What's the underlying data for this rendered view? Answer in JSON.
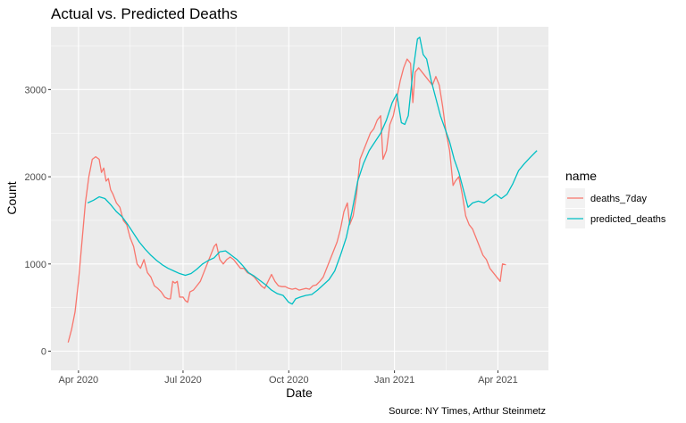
{
  "chart_data": {
    "type": "line",
    "title": "Actual vs. Predicted Deaths",
    "xlabel": "Date",
    "ylabel": "Count",
    "caption": "Source: NY Times, Arthur Steinmetz",
    "x_axis_type": "date",
    "xlim": [
      "2020-03-08",
      "2021-05-15"
    ],
    "ylim": [
      -220,
      3720
    ],
    "grid": true,
    "legend_position": "right",
    "legend_title": "name",
    "x_ticks": [
      {
        "date": "2020-04-01",
        "label": "Apr 2020"
      },
      {
        "date": "2020-07-01",
        "label": "Jul 2020"
      },
      {
        "date": "2020-10-01",
        "label": "Oct 2020"
      },
      {
        "date": "2021-01-01",
        "label": "Jan 2021"
      },
      {
        "date": "2021-04-01",
        "label": "Apr 2021"
      }
    ],
    "y_ticks": [
      {
        "value": 0,
        "label": "0"
      },
      {
        "value": 1000,
        "label": "1000"
      },
      {
        "value": 2000,
        "label": "2000"
      },
      {
        "value": 3000,
        "label": "3000"
      }
    ],
    "series": [
      {
        "name": "deaths_7day",
        "color": "#F8766D",
        "points": [
          [
            "2020-03-23",
            100
          ],
          [
            "2020-03-26",
            250
          ],
          [
            "2020-03-29",
            450
          ],
          [
            "2020-04-01",
            800
          ],
          [
            "2020-04-04",
            1250
          ],
          [
            "2020-04-07",
            1700
          ],
          [
            "2020-04-10",
            2000
          ],
          [
            "2020-04-13",
            2200
          ],
          [
            "2020-04-16",
            2230
          ],
          [
            "2020-04-19",
            2200
          ],
          [
            "2020-04-21",
            2050
          ],
          [
            "2020-04-23",
            2100
          ],
          [
            "2020-04-25",
            1950
          ],
          [
            "2020-04-27",
            1980
          ],
          [
            "2020-04-29",
            1850
          ],
          [
            "2020-05-01",
            1800
          ],
          [
            "2020-05-04",
            1700
          ],
          [
            "2020-05-07",
            1650
          ],
          [
            "2020-05-10",
            1500
          ],
          [
            "2020-05-13",
            1450
          ],
          [
            "2020-05-16",
            1300
          ],
          [
            "2020-05-19",
            1200
          ],
          [
            "2020-05-22",
            1000
          ],
          [
            "2020-05-25",
            950
          ],
          [
            "2020-05-28",
            1050
          ],
          [
            "2020-05-31",
            900
          ],
          [
            "2020-06-03",
            850
          ],
          [
            "2020-06-06",
            750
          ],
          [
            "2020-06-09",
            720
          ],
          [
            "2020-06-12",
            680
          ],
          [
            "2020-06-15",
            620
          ],
          [
            "2020-06-18",
            600
          ],
          [
            "2020-06-20",
            600
          ],
          [
            "2020-06-22",
            800
          ],
          [
            "2020-06-24",
            780
          ],
          [
            "2020-06-26",
            800
          ],
          [
            "2020-06-28",
            620
          ],
          [
            "2020-07-01",
            620
          ],
          [
            "2020-07-03",
            580
          ],
          [
            "2020-07-05",
            560
          ],
          [
            "2020-07-07",
            680
          ],
          [
            "2020-07-10",
            700
          ],
          [
            "2020-07-13",
            750
          ],
          [
            "2020-07-16",
            800
          ],
          [
            "2020-07-19",
            900
          ],
          [
            "2020-07-22",
            1000
          ],
          [
            "2020-07-25",
            1100
          ],
          [
            "2020-07-28",
            1200
          ],
          [
            "2020-07-30",
            1230
          ],
          [
            "2020-08-02",
            1050
          ],
          [
            "2020-08-05",
            1000
          ],
          [
            "2020-08-08",
            1050
          ],
          [
            "2020-08-11",
            1080
          ],
          [
            "2020-08-14",
            1050
          ],
          [
            "2020-08-17",
            1000
          ],
          [
            "2020-08-20",
            950
          ],
          [
            "2020-08-23",
            950
          ],
          [
            "2020-08-26",
            900
          ],
          [
            "2020-08-29",
            880
          ],
          [
            "2020-09-01",
            850
          ],
          [
            "2020-09-04",
            800
          ],
          [
            "2020-09-07",
            750
          ],
          [
            "2020-09-10",
            720
          ],
          [
            "2020-09-13",
            800
          ],
          [
            "2020-09-16",
            880
          ],
          [
            "2020-09-19",
            800
          ],
          [
            "2020-09-22",
            750
          ],
          [
            "2020-09-25",
            740
          ],
          [
            "2020-09-28",
            740
          ],
          [
            "2020-10-01",
            720
          ],
          [
            "2020-10-04",
            710
          ],
          [
            "2020-10-07",
            720
          ],
          [
            "2020-10-10",
            700
          ],
          [
            "2020-10-13",
            710
          ],
          [
            "2020-10-16",
            720
          ],
          [
            "2020-10-19",
            710
          ],
          [
            "2020-10-22",
            750
          ],
          [
            "2020-10-25",
            760
          ],
          [
            "2020-10-28",
            800
          ],
          [
            "2020-10-31",
            850
          ],
          [
            "2020-11-03",
            950
          ],
          [
            "2020-11-06",
            1050
          ],
          [
            "2020-11-09",
            1150
          ],
          [
            "2020-11-12",
            1250
          ],
          [
            "2020-11-15",
            1400
          ],
          [
            "2020-11-18",
            1600
          ],
          [
            "2020-11-21",
            1700
          ],
          [
            "2020-11-23",
            1450
          ],
          [
            "2020-11-26",
            1550
          ],
          [
            "2020-11-29",
            1800
          ],
          [
            "2020-12-02",
            2200
          ],
          [
            "2020-12-05",
            2300
          ],
          [
            "2020-12-08",
            2400
          ],
          [
            "2020-12-11",
            2500
          ],
          [
            "2020-12-14",
            2550
          ],
          [
            "2020-12-17",
            2650
          ],
          [
            "2020-12-20",
            2700
          ],
          [
            "2020-12-22",
            2200
          ],
          [
            "2020-12-25",
            2300
          ],
          [
            "2020-12-28",
            2600
          ],
          [
            "2020-12-31",
            2700
          ],
          [
            "2021-01-03",
            2900
          ],
          [
            "2021-01-06",
            3100
          ],
          [
            "2021-01-09",
            3250
          ],
          [
            "2021-01-12",
            3350
          ],
          [
            "2021-01-15",
            3300
          ],
          [
            "2021-01-17",
            2850
          ],
          [
            "2021-01-19",
            3200
          ],
          [
            "2021-01-22",
            3250
          ],
          [
            "2021-01-25",
            3200
          ],
          [
            "2021-01-28",
            3150
          ],
          [
            "2021-01-31",
            3100
          ],
          [
            "2021-02-03",
            3050
          ],
          [
            "2021-02-06",
            3150
          ],
          [
            "2021-02-09",
            3050
          ],
          [
            "2021-02-12",
            2800
          ],
          [
            "2021-02-15",
            2500
          ],
          [
            "2021-02-18",
            2300
          ],
          [
            "2021-02-21",
            1900
          ],
          [
            "2021-02-23",
            1950
          ],
          [
            "2021-02-26",
            2000
          ],
          [
            "2021-03-01",
            1800
          ],
          [
            "2021-03-04",
            1550
          ],
          [
            "2021-03-07",
            1450
          ],
          [
            "2021-03-10",
            1400
          ],
          [
            "2021-03-13",
            1300
          ],
          [
            "2021-03-16",
            1200
          ],
          [
            "2021-03-19",
            1100
          ],
          [
            "2021-03-22",
            1050
          ],
          [
            "2021-03-25",
            950
          ],
          [
            "2021-03-28",
            900
          ],
          [
            "2021-03-31",
            850
          ],
          [
            "2021-04-03",
            800
          ],
          [
            "2021-04-05",
            1000
          ],
          [
            "2021-04-08",
            990
          ]
        ]
      },
      {
        "name": "predicted_deaths",
        "color": "#00BFC4",
        "points": [
          [
            "2020-04-09",
            1700
          ],
          [
            "2020-04-14",
            1730
          ],
          [
            "2020-04-19",
            1770
          ],
          [
            "2020-04-24",
            1750
          ],
          [
            "2020-04-29",
            1680
          ],
          [
            "2020-05-04",
            1600
          ],
          [
            "2020-05-09",
            1540
          ],
          [
            "2020-05-14",
            1450
          ],
          [
            "2020-05-19",
            1350
          ],
          [
            "2020-05-24",
            1250
          ],
          [
            "2020-05-29",
            1170
          ],
          [
            "2020-06-03",
            1100
          ],
          [
            "2020-06-08",
            1040
          ],
          [
            "2020-06-13",
            990
          ],
          [
            "2020-06-18",
            950
          ],
          [
            "2020-06-23",
            920
          ],
          [
            "2020-06-28",
            890
          ],
          [
            "2020-07-03",
            870
          ],
          [
            "2020-07-08",
            890
          ],
          [
            "2020-07-13",
            940
          ],
          [
            "2020-07-18",
            1000
          ],
          [
            "2020-07-23",
            1040
          ],
          [
            "2020-07-28",
            1070
          ],
          [
            "2020-08-02",
            1140
          ],
          [
            "2020-08-07",
            1150
          ],
          [
            "2020-08-12",
            1100
          ],
          [
            "2020-08-17",
            1050
          ],
          [
            "2020-08-22",
            980
          ],
          [
            "2020-08-27",
            900
          ],
          [
            "2020-09-01",
            860
          ],
          [
            "2020-09-06",
            810
          ],
          [
            "2020-09-11",
            760
          ],
          [
            "2020-09-16",
            700
          ],
          [
            "2020-09-21",
            660
          ],
          [
            "2020-09-26",
            640
          ],
          [
            "2020-10-01",
            560
          ],
          [
            "2020-10-04",
            540
          ],
          [
            "2020-10-07",
            600
          ],
          [
            "2020-10-11",
            620
          ],
          [
            "2020-10-16",
            640
          ],
          [
            "2020-10-21",
            650
          ],
          [
            "2020-10-26",
            700
          ],
          [
            "2020-10-31",
            760
          ],
          [
            "2020-11-05",
            820
          ],
          [
            "2020-11-10",
            920
          ],
          [
            "2020-11-15",
            1100
          ],
          [
            "2020-11-20",
            1300
          ],
          [
            "2020-11-25",
            1600
          ],
          [
            "2020-11-30",
            1950
          ],
          [
            "2020-12-05",
            2150
          ],
          [
            "2020-12-10",
            2300
          ],
          [
            "2020-12-15",
            2400
          ],
          [
            "2020-12-20",
            2500
          ],
          [
            "2020-12-25",
            2650
          ],
          [
            "2020-12-30",
            2850
          ],
          [
            "2021-01-03",
            2950
          ],
          [
            "2021-01-07",
            2620
          ],
          [
            "2021-01-10",
            2600
          ],
          [
            "2021-01-13",
            2700
          ],
          [
            "2021-01-17",
            3200
          ],
          [
            "2021-01-21",
            3580
          ],
          [
            "2021-01-23",
            3600
          ],
          [
            "2021-01-26",
            3400
          ],
          [
            "2021-01-29",
            3350
          ],
          [
            "2021-02-02",
            3100
          ],
          [
            "2021-02-06",
            2900
          ],
          [
            "2021-02-10",
            2700
          ],
          [
            "2021-02-14",
            2550
          ],
          [
            "2021-02-18",
            2400
          ],
          [
            "2021-02-22",
            2200
          ],
          [
            "2021-02-26",
            2050
          ],
          [
            "2021-03-02",
            1850
          ],
          [
            "2021-03-06",
            1650
          ],
          [
            "2021-03-10",
            1700
          ],
          [
            "2021-03-15",
            1720
          ],
          [
            "2021-03-20",
            1700
          ],
          [
            "2021-03-25",
            1750
          ],
          [
            "2021-03-30",
            1800
          ],
          [
            "2021-04-04",
            1750
          ],
          [
            "2021-04-09",
            1800
          ],
          [
            "2021-04-14",
            1920
          ],
          [
            "2021-04-19",
            2070
          ],
          [
            "2021-04-24",
            2150
          ],
          [
            "2021-04-29",
            2220
          ],
          [
            "2021-05-05",
            2300
          ]
        ]
      }
    ]
  }
}
